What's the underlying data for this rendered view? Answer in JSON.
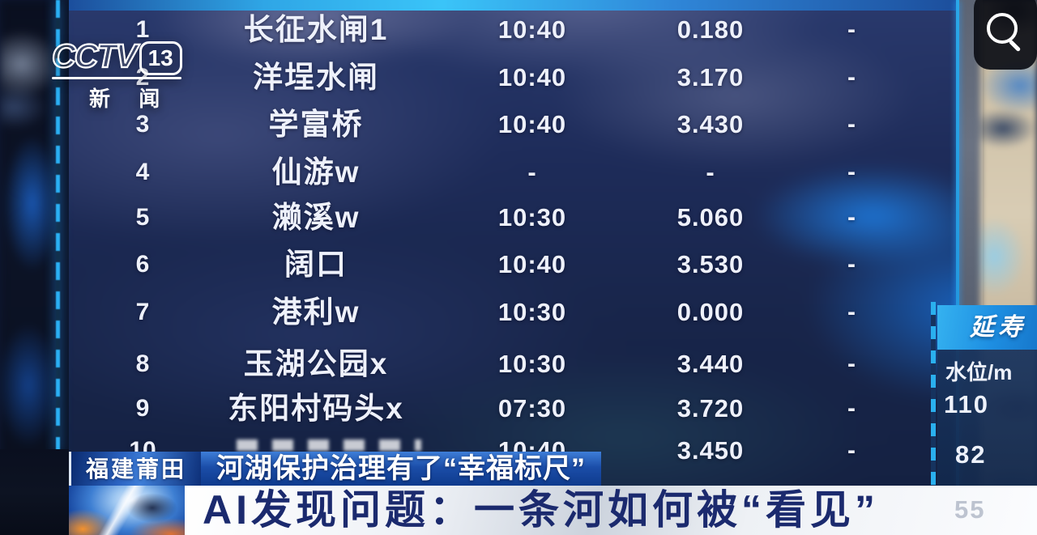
{
  "channel_logo": {
    "brand": "CCTV",
    "channel": "13",
    "subtitle": "新 闻"
  },
  "monitor_table": {
    "rows": [
      {
        "no": "1",
        "name": "长征水闸1",
        "time": "10:40",
        "value": "0.180",
        "extra": "-"
      },
      {
        "no": "2",
        "name": "洋埕水闸",
        "time": "10:40",
        "value": "3.170",
        "extra": "-"
      },
      {
        "no": "3",
        "name": "学富桥",
        "time": "10:40",
        "value": "3.430",
        "extra": "-"
      },
      {
        "no": "4",
        "name": "仙游w",
        "time": "-",
        "value": "-",
        "extra": "-"
      },
      {
        "no": "5",
        "name": "濑溪w",
        "time": "10:30",
        "value": "5.060",
        "extra": "-"
      },
      {
        "no": "6",
        "name": "阔口",
        "time": "10:40",
        "value": "3.530",
        "extra": "-"
      },
      {
        "no": "7",
        "name": "港利w",
        "time": "10:30",
        "value": "0.000",
        "extra": "-"
      },
      {
        "no": "8",
        "name": "玉湖公园x",
        "time": "10:30",
        "value": "3.440",
        "extra": "-"
      },
      {
        "no": "9",
        "name": "东阳村码头x",
        "time": "07:30",
        "value": "3.720",
        "extra": "-"
      },
      {
        "no": "10",
        "name": "",
        "time": "10:40",
        "value": "3.450",
        "extra": "-"
      }
    ]
  },
  "side_panel": {
    "header": "延寿",
    "label": "水位/m",
    "value1": "110",
    "value2": "82",
    "value3": "55"
  },
  "toolbar": {
    "search_icon": "magnifier"
  },
  "banners": {
    "location_tag": "福建莆田",
    "subtitle": "河湖保护治理有了“幸福标尺”",
    "headline": "AI发现问题：一条河如何被“看见”"
  },
  "accent_colors": {
    "cyan": "#3ac4f8",
    "panel_blue": "#1e8fe2",
    "banner_blue": "#1b4da8",
    "headline_navy": "#1b2a6e"
  }
}
